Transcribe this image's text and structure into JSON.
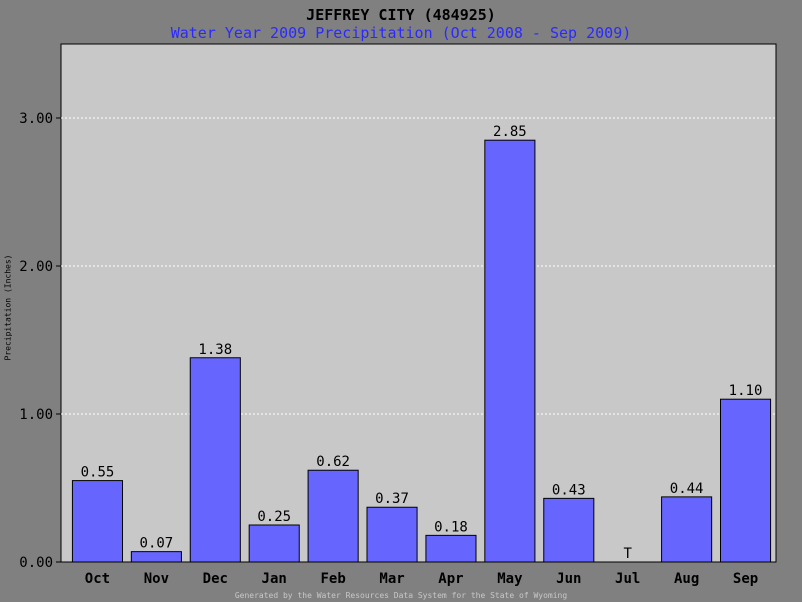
{
  "title": "JEFFREY CITY (484925)",
  "subtitle": "Water Year 2009 Precipitation (Oct 2008 - Sep 2009)",
  "ylabel": "Precipitation (Inches)",
  "footer": "Generated by the Water Resources Data System for the State of Wyoming",
  "colors": {
    "bar": "#6666ff",
    "plot_bg": "#c8c8c8",
    "frame_bg": "#808080",
    "subtitle": "#2a2aff"
  },
  "chart_data": {
    "type": "bar",
    "title": "JEFFREY CITY (484925)",
    "subtitle": "Water Year 2009 Precipitation (Oct 2008 - Sep 2009)",
    "xlabel": "",
    "ylabel": "Precipitation (Inches)",
    "categories": [
      "Oct",
      "Nov",
      "Dec",
      "Jan",
      "Feb",
      "Mar",
      "Apr",
      "May",
      "Jun",
      "Jul",
      "Aug",
      "Sep"
    ],
    "values": [
      0.55,
      0.07,
      1.38,
      0.25,
      0.62,
      0.37,
      0.18,
      2.85,
      0.43,
      0,
      0.44,
      1.1
    ],
    "value_labels": [
      "0.55",
      "0.07",
      "1.38",
      "0.25",
      "0.62",
      "0.37",
      "0.18",
      "2.85",
      "0.43",
      "T",
      "0.44",
      "1.10"
    ],
    "ylim": [
      0,
      3.5
    ],
    "yticks": [
      0,
      1,
      2,
      3
    ],
    "ytick_labels": [
      "0.00",
      "1.00",
      "2.00",
      "3.00"
    ],
    "grid": true,
    "legend": "none"
  }
}
